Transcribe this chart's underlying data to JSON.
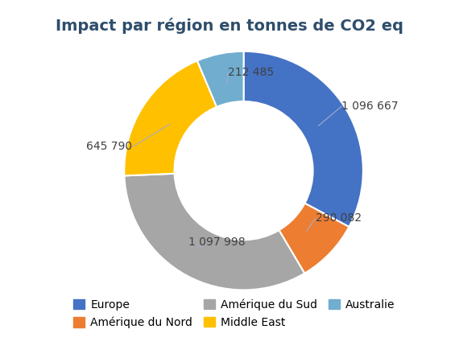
{
  "title": "Impact par région en tonnes de CO2 eq",
  "labels": [
    "Europe",
    "Amérique du Nord",
    "Amérique du Sud",
    "Middle East",
    "Australie"
  ],
  "values": [
    1096667,
    290082,
    1097998,
    645790,
    212485
  ],
  "colors": [
    "#4472C4",
    "#ED7D31",
    "#A6A6A6",
    "#FFC000",
    "#70ADCF"
  ],
  "label_texts": [
    "1 096 667",
    "290 082",
    "1 097 998",
    "645 790",
    "212 485"
  ],
  "title_fontsize": 14,
  "legend_fontsize": 10,
  "background_color": "#ffffff",
  "label_color": "#404040",
  "line_color": "#AAAACC",
  "label_fontsize": 10
}
